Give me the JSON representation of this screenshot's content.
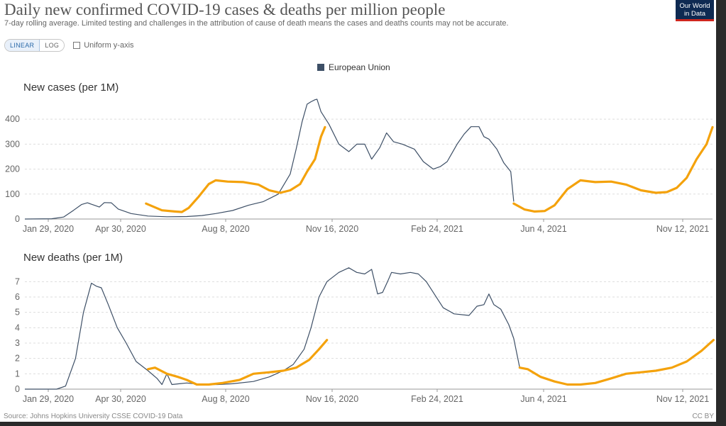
{
  "header": {
    "title": "Daily new confirmed COVID-19 cases & deaths per million people",
    "subtitle": "7-day rolling average. Limited testing and challenges in the attribution of cause of death means the cases and deaths counts may not be accurate.",
    "logo_line1": "Our World",
    "logo_line2": "in Data"
  },
  "controls": {
    "linear_label": "LINEAR",
    "log_label": "LOG",
    "uniform_label": "Uniform y-axis",
    "uniform_checked": false
  },
  "footer": {
    "source": "Source: Johns Hopkins University CSSE COVID-19 Data",
    "license": "CC BY"
  },
  "colors": {
    "eu_line": "#3d4f66",
    "highlight": "#f4a20c",
    "grid": "#dddddd",
    "axis": "#999999"
  },
  "chart_data": [
    {
      "type": "line",
      "title": "New cases (per 1M)",
      "legend": [
        "European Union"
      ],
      "legend_position": "top-center",
      "grid": true,
      "x_ticks": [
        "Jan 29, 2020",
        "Apr 30, 2020",
        "Aug 8, 2020",
        "Nov 16, 2020",
        "Feb 24, 2021",
        "Jun 4, 2021",
        "Nov 12, 2021"
      ],
      "y_ticks": [
        0,
        100,
        200,
        300,
        400
      ],
      "ylim": [
        0,
        480
      ],
      "series": [
        {
          "name": "European Union",
          "points": [
            [
              "2020-01-29",
              0
            ],
            [
              "2020-02-25",
              1
            ],
            [
              "2020-03-08",
              8
            ],
            [
              "2020-03-18",
              35
            ],
            [
              "2020-03-26",
              58
            ],
            [
              "2020-04-01",
              65
            ],
            [
              "2020-04-08",
              55
            ],
            [
              "2020-04-13",
              48
            ],
            [
              "2020-04-18",
              66
            ],
            [
              "2020-04-25",
              65
            ],
            [
              "2020-05-02",
              40
            ],
            [
              "2020-05-15",
              22
            ],
            [
              "2020-06-01",
              12
            ],
            [
              "2020-06-20",
              9
            ],
            [
              "2020-07-10",
              10
            ],
            [
              "2020-07-25",
              14
            ],
            [
              "2020-08-08",
              22
            ],
            [
              "2020-08-25",
              34
            ],
            [
              "2020-09-10",
              55
            ],
            [
              "2020-09-25",
              70
            ],
            [
              "2020-10-10",
              100
            ],
            [
              "2020-10-22",
              180
            ],
            [
              "2020-10-28",
              280
            ],
            [
              "2020-11-03",
              390
            ],
            [
              "2020-11-08",
              460
            ],
            [
              "2020-11-12",
              470
            ],
            [
              "2020-11-16",
              478
            ],
            [
              "2020-11-18",
              480
            ],
            [
              "2020-11-22",
              430
            ],
            [
              "2020-11-30",
              380
            ],
            [
              "2020-12-10",
              300
            ],
            [
              "2020-12-20",
              270
            ],
            [
              "2020-12-28",
              300
            ],
            [
              "2021-01-05",
              300
            ],
            [
              "2021-01-12",
              240
            ],
            [
              "2021-01-20",
              285
            ],
            [
              "2021-01-27",
              345
            ],
            [
              "2021-02-03",
              310
            ],
            [
              "2021-02-12",
              300
            ],
            [
              "2021-02-24",
              280
            ],
            [
              "2021-03-05",
              230
            ],
            [
              "2021-03-15",
              200
            ],
            [
              "2021-03-22",
              210
            ],
            [
              "2021-03-29",
              230
            ],
            [
              "2021-04-08",
              300
            ],
            [
              "2021-04-15",
              340
            ],
            [
              "2021-04-22",
              370
            ],
            [
              "2021-04-30",
              370
            ],
            [
              "2021-05-05",
              330
            ],
            [
              "2021-05-10",
              320
            ],
            [
              "2021-05-18",
              280
            ],
            [
              "2021-05-25",
              225
            ],
            [
              "2021-06-01",
              190
            ],
            [
              "2021-06-04",
              70
            ]
          ]
        }
      ],
      "highlight_segments": [
        [
          [
            "2020-05-30",
            62
          ],
          [
            "2020-06-15",
            35
          ],
          [
            "2020-06-28",
            30
          ],
          [
            "2020-07-05",
            28
          ],
          [
            "2020-07-12",
            45
          ],
          [
            "2020-07-22",
            90
          ],
          [
            "2020-08-01",
            140
          ],
          [
            "2020-08-08",
            155
          ],
          [
            "2020-08-20",
            150
          ],
          [
            "2020-09-05",
            148
          ],
          [
            "2020-09-20",
            138
          ],
          [
            "2020-10-01",
            115
          ],
          [
            "2020-10-12",
            105
          ],
          [
            "2020-10-22",
            115
          ],
          [
            "2020-11-01",
            140
          ],
          [
            "2020-11-08",
            190
          ],
          [
            "2020-11-16",
            240
          ],
          [
            "2020-11-22",
            330
          ],
          [
            "2020-11-26",
            368
          ]
        ],
        [
          [
            "2021-06-04",
            62
          ],
          [
            "2021-06-15",
            38
          ],
          [
            "2021-06-25",
            30
          ],
          [
            "2021-07-05",
            32
          ],
          [
            "2021-07-15",
            55
          ],
          [
            "2021-07-28",
            120
          ],
          [
            "2021-08-10",
            155
          ],
          [
            "2021-08-25",
            148
          ],
          [
            "2021-09-10",
            150
          ],
          [
            "2021-09-25",
            138
          ],
          [
            "2021-10-10",
            115
          ],
          [
            "2021-10-25",
            105
          ],
          [
            "2021-11-05",
            108
          ],
          [
            "2021-11-15",
            125
          ],
          [
            "2021-11-25",
            165
          ],
          [
            "2021-12-05",
            240
          ],
          [
            "2021-12-15",
            300
          ],
          [
            "2021-12-21",
            368
          ]
        ]
      ]
    },
    {
      "type": "line",
      "title": "New deaths (per 1M)",
      "legend": [
        "European Union"
      ],
      "grid": true,
      "x_ticks": [
        "Jan 29, 2020",
        "Apr 30, 2020",
        "Aug 8, 2020",
        "Nov 16, 2020",
        "Feb 24, 2021",
        "Jun 4, 2021",
        "Nov 12, 2021"
      ],
      "y_ticks": [
        0,
        1,
        2,
        3,
        4,
        5,
        6,
        7
      ],
      "ylim": [
        0,
        7.8
      ],
      "series": [
        {
          "name": "European Union",
          "points": [
            [
              "2020-01-29",
              0
            ],
            [
              "2020-03-01",
              0
            ],
            [
              "2020-03-10",
              0.2
            ],
            [
              "2020-03-20",
              2
            ],
            [
              "2020-03-28",
              5
            ],
            [
              "2020-04-05",
              6.9
            ],
            [
              "2020-04-10",
              6.7
            ],
            [
              "2020-04-15",
              6.6
            ],
            [
              "2020-04-22",
              5.5
            ],
            [
              "2020-05-01",
              4
            ],
            [
              "2020-05-10",
              3
            ],
            [
              "2020-05-20",
              1.8
            ],
            [
              "2020-06-01",
              1.2
            ],
            [
              "2020-06-10",
              0.7
            ],
            [
              "2020-06-15",
              0.3
            ],
            [
              "2020-06-20",
              1
            ],
            [
              "2020-06-25",
              0.3
            ],
            [
              "2020-07-10",
              0.4
            ],
            [
              "2020-07-25",
              0.3
            ],
            [
              "2020-08-10",
              0.3
            ],
            [
              "2020-08-25",
              0.35
            ],
            [
              "2020-09-15",
              0.5
            ],
            [
              "2020-10-01",
              0.8
            ],
            [
              "2020-10-15",
              1.2
            ],
            [
              "2020-10-25",
              1.6
            ],
            [
              "2020-11-05",
              2.6
            ],
            [
              "2020-11-12",
              4
            ],
            [
              "2020-11-20",
              6
            ],
            [
              "2020-11-28",
              7
            ],
            [
              "2020-12-10",
              7.6
            ],
            [
              "2020-12-20",
              7.9
            ],
            [
              "2020-12-28",
              7.6
            ],
            [
              "2021-01-05",
              7.5
            ],
            [
              "2021-01-12",
              7.8
            ],
            [
              "2021-01-18",
              6.2
            ],
            [
              "2021-01-23",
              6.3
            ],
            [
              "2021-01-28",
              7.0
            ],
            [
              "2021-02-01",
              7.6
            ],
            [
              "2021-02-10",
              7.5
            ],
            [
              "2021-02-20",
              7.6
            ],
            [
              "2021-02-28",
              7.5
            ],
            [
              "2021-03-08",
              7.0
            ],
            [
              "2021-03-16",
              6.2
            ],
            [
              "2021-03-25",
              5.3
            ],
            [
              "2021-04-05",
              4.9
            ],
            [
              "2021-04-20",
              4.8
            ],
            [
              "2021-04-28",
              5.4
            ],
            [
              "2021-05-05",
              5.5
            ],
            [
              "2021-05-10",
              6.2
            ],
            [
              "2021-05-15",
              5.5
            ],
            [
              "2021-05-22",
              5.2
            ],
            [
              "2021-05-30",
              4.2
            ],
            [
              "2021-06-04",
              3.3
            ],
            [
              "2021-06-10",
              1.4
            ]
          ]
        }
      ],
      "highlight_segments": [
        [
          [
            "2020-06-01",
            1.3
          ],
          [
            "2020-06-08",
            1.4
          ],
          [
            "2020-06-20",
            1
          ],
          [
            "2020-07-01",
            0.8
          ],
          [
            "2020-07-10",
            0.6
          ],
          [
            "2020-07-20",
            0.3
          ],
          [
            "2020-08-01",
            0.3
          ],
          [
            "2020-08-15",
            0.4
          ],
          [
            "2020-09-01",
            0.6
          ],
          [
            "2020-09-15",
            1.0
          ],
          [
            "2020-10-01",
            1.1
          ],
          [
            "2020-10-15",
            1.2
          ],
          [
            "2020-10-28",
            1.4
          ],
          [
            "2020-11-10",
            1.9
          ],
          [
            "2020-11-20",
            2.6
          ],
          [
            "2020-11-28",
            3.2
          ]
        ],
        [
          [
            "2021-06-10",
            1.4
          ],
          [
            "2021-06-18",
            1.3
          ],
          [
            "2021-07-01",
            0.8
          ],
          [
            "2021-07-15",
            0.5
          ],
          [
            "2021-07-28",
            0.3
          ],
          [
            "2021-08-10",
            0.3
          ],
          [
            "2021-08-25",
            0.4
          ],
          [
            "2021-09-10",
            0.7
          ],
          [
            "2021-09-25",
            1.0
          ],
          [
            "2021-10-10",
            1.1
          ],
          [
            "2021-10-25",
            1.2
          ],
          [
            "2021-11-10",
            1.4
          ],
          [
            "2021-11-25",
            1.8
          ],
          [
            "2021-12-10",
            2.5
          ],
          [
            "2021-12-22",
            3.2
          ]
        ]
      ]
    }
  ]
}
